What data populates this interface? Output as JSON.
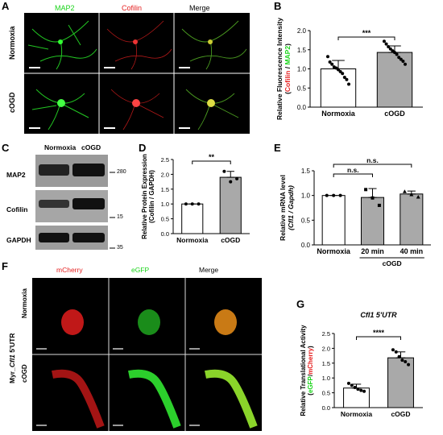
{
  "panels": {
    "A": {
      "label": "A",
      "columns": [
        {
          "text": "MAP2",
          "color": "#19d419"
        },
        {
          "text": "Cofilin",
          "color": "#e52020"
        },
        {
          "text": "Merge",
          "color": "#000000"
        }
      ],
      "rows": [
        "Normoxia",
        "cOGD"
      ]
    },
    "B": {
      "label": "B"
    },
    "C": {
      "label": "C",
      "columns": [
        "Normoxia",
        "cOGD"
      ],
      "bands": [
        "MAP2",
        "Cofilin",
        "GAPDH"
      ],
      "markers": [
        "280",
        "15",
        "35"
      ]
    },
    "D": {
      "label": "D"
    },
    "E": {
      "label": "E"
    },
    "F": {
      "label": "F",
      "columns": [
        {
          "text": "mCherry",
          "color": "#e52020"
        },
        {
          "text": "eGFP",
          "color": "#19d419"
        },
        {
          "text": "Merge",
          "color": "#000000"
        }
      ],
      "rows": [
        "Normoxia",
        "cOGD"
      ],
      "construct_prefix": "Myr_",
      "construct_gene": "Cfl1",
      "construct_suffix": " 5'UTR"
    },
    "G": {
      "label": "G"
    }
  },
  "chart_data": [
    {
      "id": "B",
      "type": "bar",
      "categories": [
        "Normoxia",
        "cOGD"
      ],
      "values": [
        1.0,
        1.43
      ],
      "errors": [
        0.22,
        0.17
      ],
      "points": [
        [
          1.32,
          1.18,
          1.12,
          1.05,
          1.02,
          0.98,
          0.93,
          0.88,
          0.78,
          0.72,
          0.6
        ],
        [
          1.72,
          1.65,
          1.58,
          1.52,
          1.47,
          1.43,
          1.38,
          1.3,
          1.25,
          1.2,
          1.12
        ]
      ],
      "ylabel_prefix": "Relative Fluorescence Intensity",
      "ylabel_a": "Cofilin",
      "ylabel_sep": " / ",
      "ylabel_b": "MAP2",
      "ylabel_a_color": "#e52020",
      "ylabel_b_color": "#19d419",
      "ylim": [
        0,
        2.0
      ],
      "yticks": [
        "0.0",
        "0.5",
        "1.0",
        "1.5",
        "2.0"
      ],
      "significance": "***",
      "bar_colors": [
        "#ffffff",
        "#a9a9a9"
      ]
    },
    {
      "id": "D",
      "type": "bar",
      "categories": [
        "Normoxia",
        "cOGD"
      ],
      "values": [
        1.0,
        1.9
      ],
      "errors": [
        0.0,
        0.2
      ],
      "points": [
        [
          1.0,
          1.0,
          1.0
        ],
        [
          2.1,
          1.75,
          1.85
        ]
      ],
      "ylabel_line1": "Relative Protein Expression",
      "ylabel_line2": "(Cofilin / GAPDH)",
      "ylim": [
        0,
        2.5
      ],
      "yticks": [
        "0.0",
        "0.5",
        "1.0",
        "1.5",
        "2.0",
        "2.5"
      ],
      "significance": "**",
      "bar_colors": [
        "#ffffff",
        "#a9a9a9"
      ]
    },
    {
      "id": "E",
      "type": "bar",
      "categories": [
        "Normoxia",
        "20 min",
        "40 min"
      ],
      "group_label": "cOGD",
      "values": [
        1.0,
        0.96,
        1.03
      ],
      "errors": [
        0.0,
        0.18,
        0.06
      ],
      "points": [
        [
          1.0,
          1.0,
          1.0
        ],
        [
          1.12,
          0.95,
          0.8
        ],
        [
          1.08,
          1.02,
          0.97
        ]
      ],
      "ylabel_line1": "Relative mRNA level",
      "ylabel_line2": "(Cfl1 / Gapdh)",
      "ylim": [
        0,
        1.5
      ],
      "yticks": [
        "0.0",
        "0.5",
        "1.0",
        "1.5"
      ],
      "comparisons": [
        "n.s.",
        "n.s."
      ],
      "bar_colors": [
        "#ffffff",
        "#a9a9a9",
        "#a9a9a9"
      ]
    },
    {
      "id": "G",
      "type": "bar",
      "title": "Cfl1 5'UTR",
      "categories": [
        "Normoxia",
        "cOGD"
      ],
      "values": [
        0.66,
        1.68
      ],
      "errors": [
        0.13,
        0.2
      ],
      "points": [
        [
          0.82,
          0.75,
          0.68,
          0.62,
          0.58,
          0.55
        ],
        [
          1.95,
          1.88,
          1.72,
          1.6,
          1.55,
          1.45
        ]
      ],
      "ylabel_prefix": "Relative Translational Activity",
      "ylabel_a": "eGFP",
      "ylabel_sep": "/",
      "ylabel_b": "mCherry",
      "ylabel_a_color": "#19d419",
      "ylabel_b_color": "#e52020",
      "ylim": [
        0,
        2.5
      ],
      "yticks": [
        "0.0",
        "0.5",
        "1.0",
        "1.5",
        "2.0",
        "2.5"
      ],
      "significance": "****",
      "bar_colors": [
        "#ffffff",
        "#a9a9a9"
      ]
    }
  ]
}
